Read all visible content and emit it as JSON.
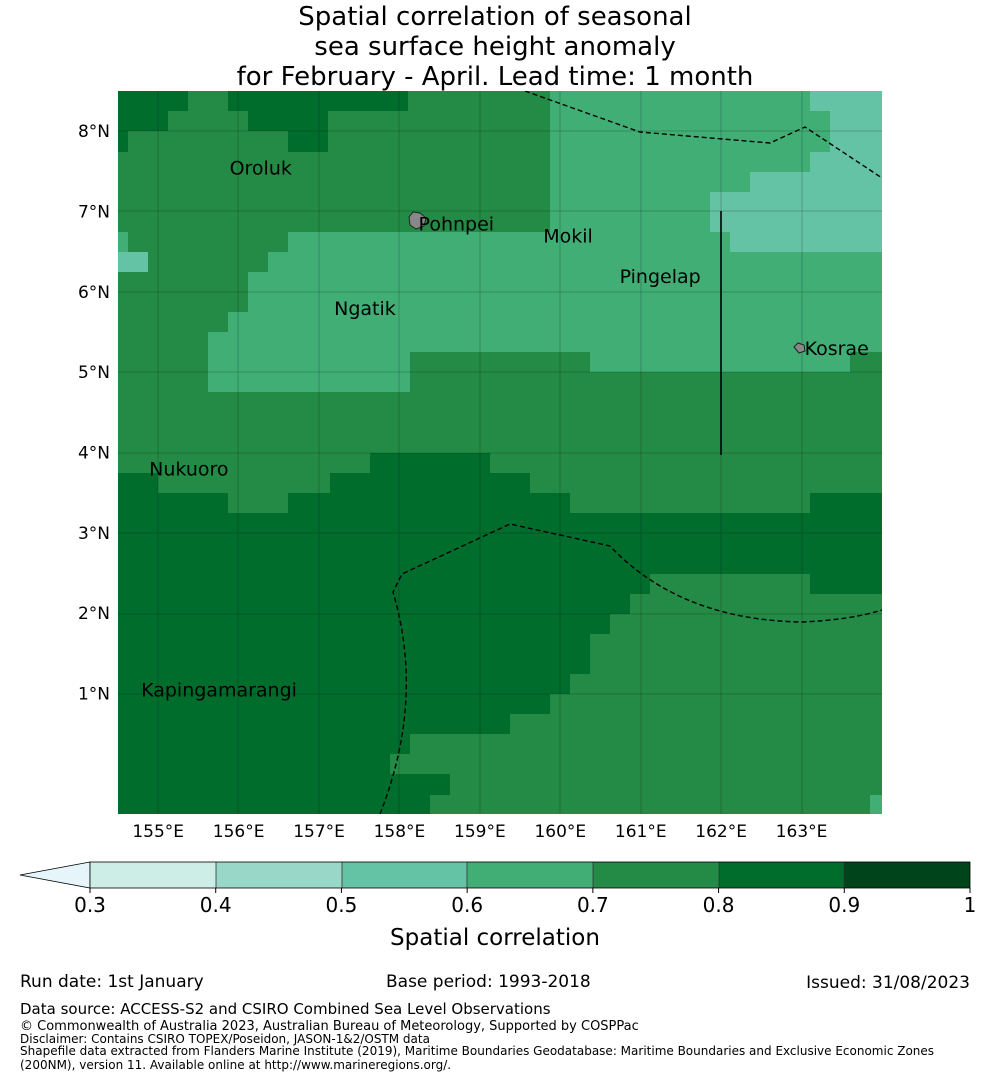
{
  "title": {
    "line1": "Spatial correlation of seasonal",
    "line2": "sea surface height anomaly",
    "line3": "for February - April. Lead time: 1 month"
  },
  "axes": {
    "lat_labels": [
      "8°N",
      "7°N",
      "6°N",
      "5°N",
      "4°N",
      "3°N",
      "2°N",
      "1°N"
    ],
    "lon_labels": [
      "155°E",
      "156°E",
      "157°E",
      "158°E",
      "159°E",
      "160°E",
      "161°E",
      "162°E",
      "163°E"
    ]
  },
  "places": [
    {
      "name": "Oroluk",
      "lon": 155.85,
      "lat": 7.55
    },
    {
      "name": "Pohnpei",
      "lon": 158.2,
      "lat": 6.85
    },
    {
      "name": "Mokil",
      "lon": 159.75,
      "lat": 6.7
    },
    {
      "name": "Pingelap",
      "lon": 160.7,
      "lat": 6.2
    },
    {
      "name": "Ngatik",
      "lon": 157.15,
      "lat": 5.8
    },
    {
      "name": "Kosrae",
      "lon": 163.0,
      "lat": 5.3
    },
    {
      "name": "Nukuoro",
      "lon": 154.85,
      "lat": 3.8
    },
    {
      "name": "Kapingamarangi",
      "lon": 154.75,
      "lat": 1.05
    }
  ],
  "colors": {
    "band_03_04": "#cceee6",
    "band_04_05": "#99d8c8",
    "band_05_06": "#64c2a5",
    "band_06_07": "#41ae76",
    "band_07_08": "#238b45",
    "band_08_09": "#006d2c",
    "band_09_10": "#00441b",
    "below_03": "#e5f5f9"
  },
  "colorbar": {
    "ticks": [
      "0.3",
      "0.4",
      "0.5",
      "0.6",
      "0.7",
      "0.8",
      "0.9",
      "1"
    ],
    "label": "Spatial correlation"
  },
  "footer": {
    "run_date": "Run date: 1st January",
    "base_period": "Base period: 1993-2018",
    "issued": "Issued: 31/08/2023",
    "data_source": "Data source: ACCESS-S2 and CSIRO Combined Sea Level Observations",
    "copyright": "© Commonwealth of Australia 2023, Australian Bureau of Meteorology, Supported by COSPPac",
    "disclaimer": "Disclaimer: Contains CSIRO TOPEX/Poseidon, JASON-1&2/OSTM data",
    "shapefile1": "Shapefile data extracted from Flanders Marine Institute (2019), Maritime Boundaries Geodatabase: Maritime Boundaries and Exclusive Economic Zones",
    "shapefile2": "(200NM), version 11. Available online at http://www.marineregions.org/."
  }
}
